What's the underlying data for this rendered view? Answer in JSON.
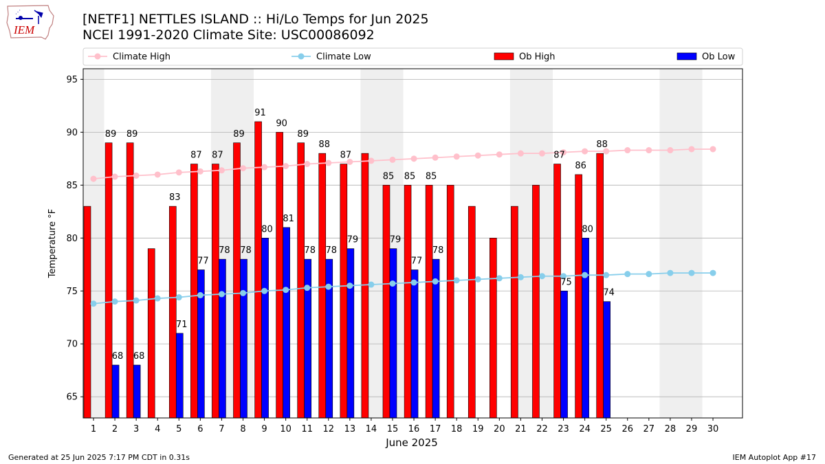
{
  "header": {
    "title_line1": "[NETF1] NETTLES ISLAND :: Hi/Lo Temps for Jun 2025",
    "title_line2": "NCEI 1991-2020 Climate Site: USC00086092"
  },
  "logo": {
    "text": "IEM"
  },
  "footer": {
    "generated": "Generated at 25 Jun 2025 7:17 PM CDT in 0.31s",
    "app": "IEM Autoplot App #17"
  },
  "colors": {
    "ob_high": "#ff0000",
    "ob_low": "#0000ff",
    "climate_high": "#ffc0cb",
    "climate_low": "#87ceeb",
    "weekend_band": "#efefef",
    "grid": "#b0b0b0"
  },
  "chart_data": {
    "type": "bar",
    "xlabel": "June 2025",
    "ylabel": "Temperature °F",
    "ylim": [
      63,
      96
    ],
    "yticks": [
      65,
      70,
      75,
      80,
      85,
      90,
      95
    ],
    "grid": true,
    "legend_position": "top",
    "legend": [
      "Climate High",
      "Climate Low",
      "Ob High",
      "Ob Low"
    ],
    "categories": [
      "1",
      "2",
      "3",
      "4",
      "5",
      "6",
      "7",
      "8",
      "9",
      "10",
      "11",
      "12",
      "13",
      "14",
      "15",
      "16",
      "17",
      "18",
      "19",
      "20",
      "21",
      "22",
      "23",
      "24",
      "25",
      "26",
      "27",
      "28",
      "29",
      "30"
    ],
    "weekend_days": [
      1,
      7,
      8,
      14,
      15,
      21,
      22,
      28,
      29
    ],
    "series": [
      {
        "name": "Ob High",
        "values": [
          83,
          89,
          89,
          79,
          83,
          87,
          87,
          89,
          91,
          90,
          89,
          88,
          87,
          88,
          85,
          85,
          85,
          85,
          83,
          80,
          83,
          85,
          87,
          86,
          88,
          null,
          null,
          null,
          null,
          null
        ],
        "labels": [
          "",
          "89",
          "89",
          "",
          "83",
          "87",
          "87",
          "89",
          "91",
          "90",
          "89",
          "88",
          "87",
          "",
          "85",
          "85",
          "85",
          "",
          "",
          "",
          "",
          "",
          "87",
          "86",
          "88",
          "",
          "",
          "",
          "",
          ""
        ]
      },
      {
        "name": "Ob Low",
        "values": [
          null,
          68,
          68,
          null,
          71,
          77,
          78,
          78,
          80,
          81,
          78,
          78,
          79,
          null,
          79,
          77,
          78,
          null,
          null,
          null,
          null,
          null,
          75,
          80,
          74,
          null,
          null,
          null,
          null,
          null
        ],
        "labels": [
          "",
          "68",
          "68",
          "",
          "71",
          "77",
          "78",
          "78",
          "80",
          "81",
          "78",
          "78",
          "79",
          "",
          "79",
          "77",
          "78",
          "",
          "",
          "",
          "",
          "",
          "75",
          "80",
          "74",
          "",
          "",
          "",
          "",
          ""
        ]
      },
      {
        "name": "Climate High",
        "values": [
          85.6,
          85.8,
          85.9,
          86.0,
          86.2,
          86.3,
          86.4,
          86.6,
          86.7,
          86.8,
          87.0,
          87.1,
          87.2,
          87.3,
          87.4,
          87.5,
          87.6,
          87.7,
          87.8,
          87.9,
          88.0,
          88.0,
          88.1,
          88.2,
          88.2,
          88.3,
          88.3,
          88.3,
          88.4,
          88.4
        ]
      },
      {
        "name": "Climate Low",
        "values": [
          73.8,
          74.0,
          74.1,
          74.3,
          74.4,
          74.6,
          74.7,
          74.8,
          75.0,
          75.1,
          75.3,
          75.4,
          75.5,
          75.6,
          75.7,
          75.8,
          75.9,
          76.0,
          76.1,
          76.2,
          76.3,
          76.4,
          76.4,
          76.5,
          76.5,
          76.6,
          76.6,
          76.7,
          76.7,
          76.7
        ]
      }
    ]
  }
}
